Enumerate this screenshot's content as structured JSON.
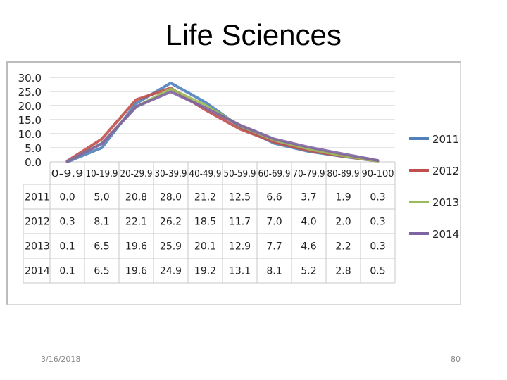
{
  "slide": {
    "title": "Life Sciences",
    "footer_date": "3/16/2018",
    "page_number": "80"
  },
  "chart_data": {
    "type": "line",
    "title": "",
    "xlabel": "",
    "ylabel": "",
    "ylim": [
      0,
      30
    ],
    "y_ticks": [
      "30.0",
      "25.0",
      "20.0",
      "15.0",
      "10.0",
      "5.0",
      "0.0"
    ],
    "grid": true,
    "legend_position": "right",
    "categories": [
      "0-9.9",
      "10-19.9",
      "20-29.9",
      "30-39.9",
      "40-49.9",
      "50-59.9",
      "60-69.9",
      "70-79.9",
      "80-89.9",
      "90-100"
    ],
    "series": [
      {
        "name": "2011",
        "color": "#4f81bd",
        "values": [
          0.0,
          5.0,
          20.8,
          28.0,
          21.2,
          12.5,
          6.6,
          3.7,
          1.9,
          0.3
        ],
        "labels": [
          "0.0",
          "5.0",
          "20.8",
          "28.0",
          "21.2",
          "12.5",
          "6.6",
          "3.7",
          "1.9",
          "0.3"
        ]
      },
      {
        "name": "2012",
        "color": "#c0504d",
        "values": [
          0.3,
          8.1,
          22.1,
          26.2,
          18.5,
          11.7,
          7.0,
          4.0,
          2.0,
          0.3
        ],
        "labels": [
          "0.3",
          "8.1",
          "22.1",
          "26.2",
          "18.5",
          "11.7",
          "7.0",
          "4.0",
          "2.0",
          "0.3"
        ]
      },
      {
        "name": "2013",
        "color": "#9bbb59",
        "values": [
          0.1,
          6.5,
          19.6,
          25.9,
          20.1,
          12.9,
          7.7,
          4.6,
          2.2,
          0.3
        ],
        "labels": [
          "0.1",
          "6.5",
          "19.6",
          "25.9",
          "20.1",
          "12.9",
          "7.7",
          "4.6",
          "2.2",
          "0.3"
        ]
      },
      {
        "name": "2014",
        "color": "#8064a2",
        "values": [
          0.1,
          6.5,
          19.6,
          24.9,
          19.2,
          13.1,
          8.1,
          5.2,
          2.8,
          0.5
        ],
        "labels": [
          "0.1",
          "6.5",
          "19.6",
          "24.9",
          "19.2",
          "13.1",
          "8.1",
          "5.2",
          "2.8",
          "0.5"
        ]
      }
    ]
  }
}
